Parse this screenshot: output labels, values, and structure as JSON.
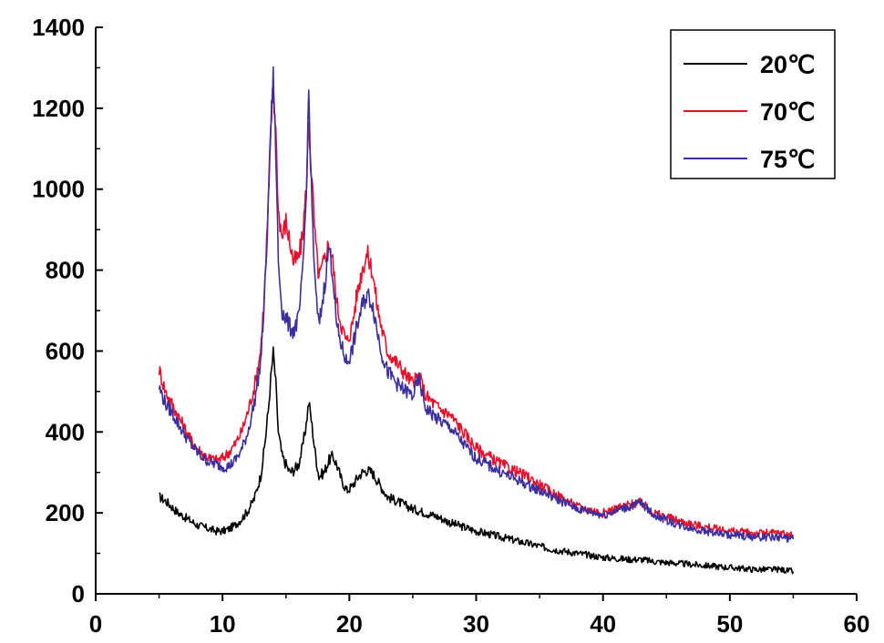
{
  "chart_data": {
    "type": "line",
    "title": "",
    "xlabel": "",
    "ylabel": "",
    "xlim": [
      0,
      60
    ],
    "ylim": [
      0,
      1400
    ],
    "x_ticks": [
      "0",
      "10",
      "20",
      "30",
      "40",
      "50",
      "60"
    ],
    "y_ticks": [
      "0",
      "200",
      "400",
      "600",
      "800",
      "1000",
      "1200",
      "1400"
    ],
    "grid": false,
    "legend_position": "top-right",
    "series": [
      {
        "name": "20℃",
        "color": "#000000",
        "x": [
          5,
          5.5,
          6,
          6.5,
          7,
          7.5,
          8,
          8.5,
          9,
          9.5,
          10,
          10.5,
          11,
          11.5,
          12,
          12.5,
          13,
          13.3,
          13.6,
          13.8,
          14,
          14.2,
          14.4,
          14.7,
          15,
          15.3,
          15.6,
          16,
          16.3,
          16.6,
          16.8,
          17,
          17.3,
          17.6,
          18,
          18.4,
          18.7,
          19,
          19.4,
          19.8,
          20.2,
          20.6,
          21,
          21.4,
          21.8,
          22.2,
          22.6,
          23,
          24,
          25,
          26,
          27,
          28,
          29,
          30,
          32,
          34,
          36,
          38,
          40,
          42,
          43,
          44,
          46,
          48,
          50,
          52,
          54,
          55
        ],
        "y": [
          240,
          230,
          215,
          200,
          190,
          180,
          170,
          165,
          160,
          155,
          155,
          160,
          170,
          185,
          205,
          235,
          290,
          360,
          450,
          530,
          595,
          520,
          400,
          340,
          320,
          300,
          305,
          320,
          360,
          420,
          475,
          430,
          350,
          290,
          300,
          330,
          340,
          320,
          280,
          255,
          265,
          285,
          300,
          305,
          300,
          280,
          260,
          240,
          225,
          210,
          200,
          190,
          175,
          165,
          155,
          140,
          125,
          110,
          100,
          90,
          85,
          85,
          80,
          75,
          70,
          65,
          60,
          60,
          55
        ]
      },
      {
        "name": "70℃",
        "color": "#e8112d",
        "x": [
          5,
          5.5,
          6,
          6.5,
          7,
          7.5,
          8,
          8.5,
          9,
          9.5,
          10,
          10.5,
          11,
          11.5,
          12,
          12.5,
          13,
          13.3,
          13.6,
          13.8,
          14,
          14.2,
          14.4,
          14.7,
          15,
          15.3,
          15.6,
          16,
          16.3,
          16.6,
          16.8,
          17,
          17.3,
          17.6,
          18,
          18.4,
          18.7,
          19,
          19.4,
          19.8,
          20.2,
          20.6,
          21,
          21.4,
          21.8,
          22.2,
          22.6,
          23,
          24,
          25,
          25.5,
          26,
          27,
          28,
          29,
          30,
          32,
          34,
          36,
          38,
          40,
          42,
          43,
          44,
          46,
          48,
          50,
          52,
          54,
          55
        ],
        "y": [
          555,
          500,
          470,
          440,
          410,
          380,
          360,
          345,
          335,
          330,
          335,
          350,
          370,
          400,
          450,
          510,
          600,
          740,
          950,
          1150,
          1260,
          1150,
          950,
          880,
          920,
          870,
          820,
          830,
          880,
          1000,
          1170,
          1050,
          880,
          780,
          820,
          870,
          820,
          720,
          660,
          620,
          660,
          740,
          800,
          840,
          800,
          710,
          650,
          600,
          560,
          520,
          540,
          490,
          460,
          440,
          400,
          360,
          320,
          290,
          250,
          215,
          200,
          220,
          225,
          200,
          180,
          165,
          155,
          150,
          150,
          145
        ]
      },
      {
        "name": "75℃",
        "color": "#3b2f9f",
        "x": [
          5,
          5.5,
          6,
          6.5,
          7,
          7.5,
          8,
          8.5,
          9,
          9.5,
          10,
          10.5,
          11,
          11.5,
          12,
          12.5,
          13,
          13.3,
          13.6,
          13.8,
          14,
          14.2,
          14.4,
          14.7,
          15,
          15.3,
          15.6,
          16,
          16.3,
          16.6,
          16.8,
          17,
          17.3,
          17.6,
          18,
          18.4,
          18.7,
          19,
          19.4,
          19.8,
          20.2,
          20.6,
          21,
          21.4,
          21.8,
          22.2,
          22.6,
          23,
          24,
          25,
          25.5,
          26,
          27,
          28,
          29,
          30,
          32,
          34,
          36,
          38,
          40,
          42,
          43,
          44,
          46,
          48,
          50,
          52,
          54,
          55
        ],
        "y": [
          510,
          470,
          450,
          420,
          395,
          370,
          350,
          335,
          325,
          320,
          315,
          315,
          330,
          355,
          400,
          470,
          570,
          720,
          950,
          1150,
          1270,
          1100,
          820,
          700,
          680,
          660,
          650,
          680,
          780,
          980,
          1240,
          1000,
          760,
          660,
          750,
          860,
          790,
          660,
          610,
          570,
          600,
          660,
          710,
          740,
          720,
          650,
          590,
          550,
          510,
          490,
          530,
          460,
          430,
          410,
          370,
          335,
          300,
          270,
          240,
          210,
          195,
          215,
          225,
          195,
          170,
          155,
          145,
          140,
          140,
          135
        ]
      }
    ]
  }
}
